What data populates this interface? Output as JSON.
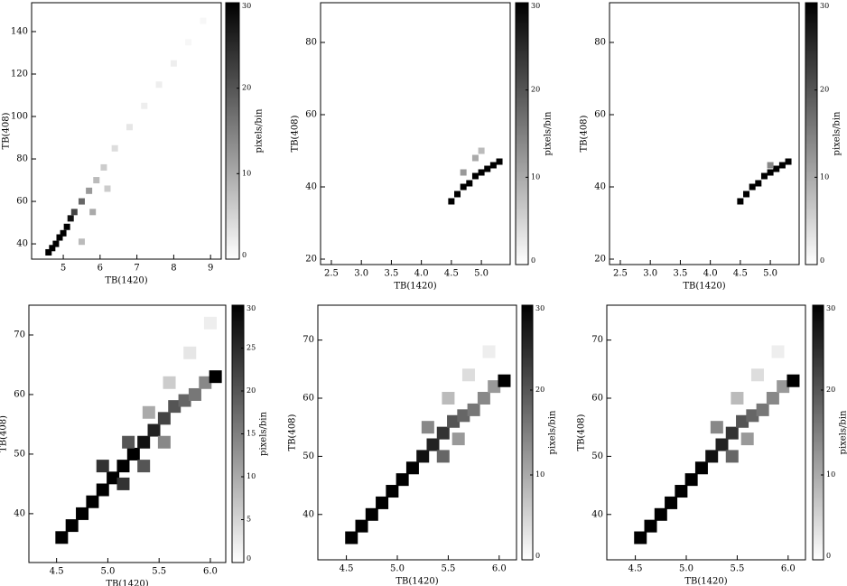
{
  "chart_data": [
    {
      "type": "heatmap",
      "xlabel": "TB(1420)",
      "ylabel": "TB(408)",
      "colorbar_label": "pixels/bin",
      "x": [
        4.6,
        4.7,
        4.8,
        4.9,
        5.0,
        5.1,
        5.2,
        5.3,
        5.5,
        5.7,
        5.9,
        6.1,
        6.4,
        6.8,
        7.2,
        7.6,
        8.0,
        8.4,
        8.8,
        5.5,
        5.8,
        6.2
      ],
      "y": [
        36,
        38,
        40,
        43,
        45,
        48,
        52,
        55,
        60,
        65,
        70,
        76,
        85,
        95,
        105,
        115,
        125,
        135,
        145,
        41,
        55,
        66
      ],
      "values": [
        30,
        30,
        30,
        30,
        30,
        30,
        28,
        22,
        18,
        12,
        8,
        6,
        4,
        3,
        2,
        2,
        2,
        1,
        1,
        8,
        10,
        6
      ],
      "xlim": [
        4.14,
        9.29
      ],
      "ylim": [
        32.8,
        153.6
      ],
      "xticks": [
        5,
        6,
        7,
        8,
        9
      ],
      "yticks": [
        40,
        60,
        80,
        100,
        120,
        140
      ],
      "clim": [
        0,
        30
      ],
      "cticks": [
        0,
        10,
        20,
        30
      ]
    },
    {
      "type": "heatmap",
      "xlabel": "TB(1420)",
      "ylabel": "TB(408)",
      "colorbar_label": "pixels/bin",
      "x": [
        4.5,
        4.6,
        4.7,
        4.8,
        4.9,
        5.0,
        5.1,
        5.2,
        5.3,
        4.7,
        4.9,
        5.0
      ],
      "y": [
        36,
        38,
        40,
        41,
        43,
        44,
        45,
        46,
        47,
        44,
        48,
        50
      ],
      "values": [
        30,
        30,
        30,
        30,
        30,
        30,
        30,
        30,
        30,
        12,
        10,
        8
      ],
      "xlim": [
        2.32,
        5.48
      ],
      "ylim": [
        18.5,
        91
      ],
      "xticks": [
        2.5,
        {
          "value": 3,
          "label": "3.0"
        },
        3.5,
        {
          "value": 4,
          "label": "4.0"
        },
        4.5,
        {
          "value": 5,
          "label": "5.0"
        }
      ],
      "yticks": [
        20,
        40,
        60,
        80
      ],
      "clim": [
        0,
        30
      ],
      "cticks": [
        0,
        10,
        20,
        30
      ]
    },
    {
      "type": "heatmap",
      "xlabel": "TB(1420)",
      "ylabel": "TB(408)",
      "colorbar_label": "pixels/bin",
      "x": [
        4.5,
        4.6,
        4.7,
        4.8,
        4.9,
        5.0,
        5.1,
        5.2,
        5.3,
        5.0
      ],
      "y": [
        36,
        38,
        40,
        41,
        43,
        44,
        45,
        46,
        47,
        46
      ],
      "values": [
        30,
        30,
        30,
        30,
        30,
        30,
        30,
        30,
        30,
        14
      ],
      "xlim": [
        2.32,
        5.48
      ],
      "ylim": [
        18.5,
        91
      ],
      "xticks": [
        2.5,
        {
          "value": 3,
          "label": "3.0"
        },
        3.5,
        {
          "value": 4,
          "label": "4.0"
        },
        4.5,
        {
          "value": 5,
          "label": "5.0"
        }
      ],
      "yticks": [
        20,
        40,
        60,
        80
      ],
      "clim": [
        0,
        30
      ],
      "cticks": [
        0,
        10,
        20,
        30
      ]
    },
    {
      "type": "heatmap",
      "xlabel": "TB(1420)",
      "ylabel": "TB(408)",
      "colorbar_label": "pixels/bin",
      "x": [
        4.55,
        4.65,
        4.75,
        4.85,
        4.95,
        5.05,
        5.15,
        5.25,
        5.35,
        5.45,
        5.55,
        5.65,
        5.75,
        5.85,
        5.95,
        6.05,
        5.2,
        5.4,
        5.6,
        5.8,
        6.0,
        4.95,
        5.15,
        5.35,
        5.55
      ],
      "y": [
        36,
        38,
        40,
        42,
        44,
        46,
        48,
        50,
        52,
        54,
        56,
        58,
        59,
        60,
        62,
        63,
        52,
        57,
        62,
        67,
        72,
        48,
        45,
        48,
        52
      ],
      "values": [
        30,
        30,
        30,
        30,
        30,
        30,
        30,
        30,
        28,
        26,
        22,
        20,
        18,
        16,
        14,
        30,
        20,
        10,
        6,
        3,
        2,
        24,
        24,
        20,
        14
      ],
      "xlim": [
        4.23,
        6.15
      ],
      "ylim": [
        31.8,
        75
      ],
      "xticks": [
        4.5,
        {
          "value": 5,
          "label": "5.0"
        },
        5.5,
        {
          "value": 6,
          "label": "6.0"
        }
      ],
      "yticks": [
        40,
        50,
        60,
        70
      ],
      "clim": [
        0,
        30
      ],
      "cticks": [
        0,
        5,
        10,
        15,
        20,
        25,
        30
      ]
    },
    {
      "type": "heatmap",
      "xlabel": "TB(1420)",
      "ylabel": "TB(408)",
      "colorbar_label": "pixels/bin",
      "x": [
        4.55,
        4.65,
        4.75,
        4.85,
        4.95,
        5.05,
        5.15,
        5.25,
        5.35,
        5.45,
        5.55,
        5.65,
        5.75,
        5.85,
        5.95,
        6.05,
        5.3,
        5.5,
        5.7,
        5.9,
        5.45,
        5.6
      ],
      "y": [
        36,
        38,
        40,
        42,
        44,
        46,
        48,
        50,
        52,
        54,
        56,
        57,
        58,
        60,
        62,
        63,
        55,
        60,
        64,
        68,
        50,
        53
      ],
      "values": [
        30,
        30,
        30,
        30,
        30,
        30,
        30,
        28,
        26,
        24,
        20,
        18,
        16,
        14,
        12,
        30,
        14,
        8,
        4,
        2,
        18,
        12
      ],
      "xlim": [
        4.22,
        6.17
      ],
      "ylim": [
        32.2,
        76
      ],
      "xticks": [
        4.5,
        {
          "value": 5,
          "label": "5.0"
        },
        5.5,
        {
          "value": 6,
          "label": "6.0"
        }
      ],
      "yticks": [
        40,
        50,
        60,
        70
      ],
      "clim": [
        0,
        30
      ],
      "cticks": [
        0,
        10,
        20,
        30
      ]
    },
    {
      "type": "heatmap",
      "xlabel": "TB(1420)",
      "ylabel": "TB(408)",
      "colorbar_label": "pixels/bin",
      "x": [
        4.55,
        4.65,
        4.75,
        4.85,
        4.95,
        5.05,
        5.15,
        5.25,
        5.35,
        5.45,
        5.55,
        5.65,
        5.75,
        5.85,
        5.95,
        6.05,
        5.3,
        5.5,
        5.7,
        5.9,
        5.45,
        5.6
      ],
      "y": [
        36,
        38,
        40,
        42,
        44,
        46,
        48,
        50,
        52,
        54,
        56,
        57,
        58,
        60,
        62,
        63,
        55,
        60,
        64,
        68,
        50,
        53
      ],
      "values": [
        30,
        30,
        30,
        30,
        30,
        30,
        30,
        28,
        26,
        24,
        20,
        18,
        16,
        14,
        12,
        30,
        14,
        8,
        4,
        2,
        18,
        12
      ],
      "xlim": [
        4.22,
        6.17
      ],
      "ylim": [
        32.2,
        76
      ],
      "xticks": [
        4.5,
        {
          "value": 5,
          "label": "5.0"
        },
        5.5,
        {
          "value": 6,
          "label": "6.0"
        }
      ],
      "yticks": [
        40,
        50,
        60,
        70
      ],
      "clim": [
        0,
        30
      ],
      "cticks": [
        0,
        10,
        20,
        30
      ]
    }
  ]
}
